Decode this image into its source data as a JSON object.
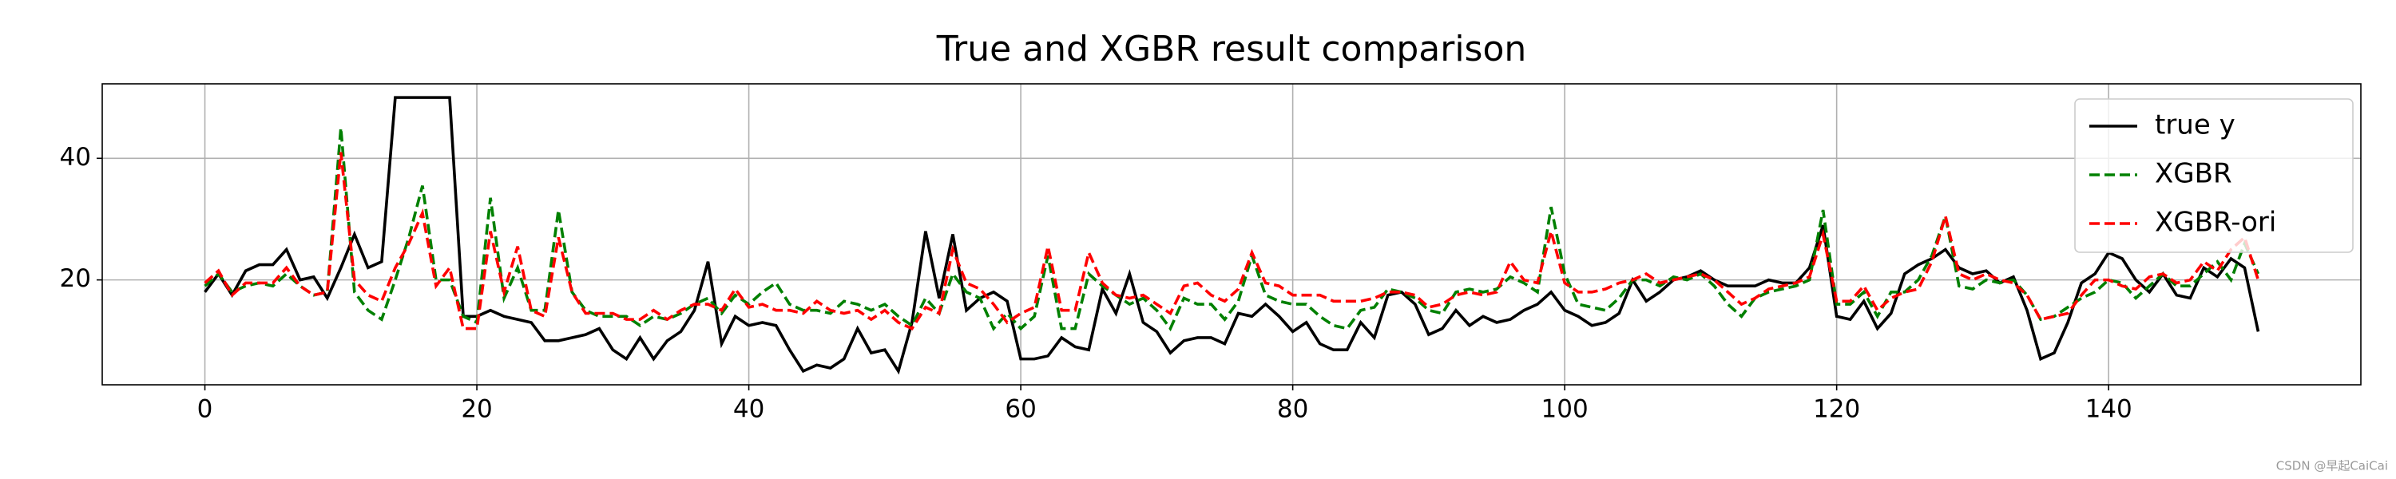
{
  "chart_data": {
    "type": "line",
    "title": "True and XGBR result comparison",
    "x": [
      0,
      1,
      2,
      3,
      4,
      5,
      6,
      7,
      8,
      9,
      10,
      11,
      12,
      13,
      14,
      15,
      16,
      17,
      18,
      19,
      20,
      21,
      22,
      23,
      24,
      25,
      26,
      27,
      28,
      29,
      30,
      31,
      32,
      33,
      34,
      35,
      36,
      37,
      38,
      39,
      40,
      41,
      42,
      43,
      44,
      45,
      46,
      47,
      48,
      49,
      50,
      51,
      52,
      53,
      54,
      55,
      56,
      57,
      58,
      59,
      60,
      61,
      62,
      63,
      64,
      65,
      66,
      67,
      68,
      69,
      70,
      71,
      72,
      73,
      74,
      75,
      76,
      77,
      78,
      79,
      80,
      81,
      82,
      83,
      84,
      85,
      86,
      87,
      88,
      89,
      90,
      91,
      92,
      93,
      94,
      95,
      96,
      97,
      98,
      99,
      100,
      101,
      102,
      103,
      104,
      105,
      106,
      107,
      108,
      109,
      110,
      111,
      112,
      113,
      114,
      115,
      116,
      117,
      118,
      119,
      120,
      121,
      122,
      123,
      124,
      125,
      126,
      127,
      128,
      129,
      130,
      131,
      132,
      133,
      134,
      135,
      136,
      137,
      138,
      139,
      140,
      141,
      142,
      143,
      144,
      145,
      146,
      147,
      148,
      149,
      150,
      151
    ],
    "series": [
      {
        "name": "true y",
        "color": "#000000",
        "dash": "solid",
        "values": [
          18,
          21,
          17.5,
          21.5,
          22.5,
          22.5,
          25,
          20,
          20.5,
          17,
          22,
          27.5,
          22,
          23,
          50,
          50,
          50,
          50,
          50,
          14,
          14,
          15,
          14,
          13.5,
          13,
          10,
          10,
          10.5,
          11,
          12,
          8.5,
          7,
          10.5,
          7,
          10,
          11.5,
          15,
          23,
          9.5,
          14,
          12.5,
          13,
          12.5,
          8.5,
          5,
          6,
          5.5,
          7,
          12,
          8,
          8.5,
          5,
          13,
          28,
          17,
          27.5,
          15,
          17,
          18,
          16.5,
          7,
          7,
          7.5,
          10.5,
          9,
          8.5,
          18.5,
          14.5,
          21,
          13,
          11.5,
          8,
          10,
          10.5,
          10.5,
          9.5,
          14.5,
          14,
          16,
          14,
          11.5,
          13,
          9.5,
          8.5,
          8.5,
          13,
          10.5,
          17.5,
          18,
          16,
          11,
          12,
          15,
          12.5,
          14,
          13,
          13.5,
          15,
          16,
          18,
          15,
          14,
          12.5,
          13,
          14.5,
          20,
          16.5,
          18,
          20,
          20.5,
          21.5,
          20,
          19,
          19,
          19,
          20,
          19.5,
          19.5,
          22,
          29,
          14,
          13.5,
          16.5,
          12,
          14.5,
          21,
          22.5,
          23.5,
          25,
          22,
          21,
          21.5,
          19.5,
          20.5,
          15,
          7,
          8,
          13,
          19.5,
          21,
          24.5,
          23.5,
          20,
          18,
          21,
          17.5,
          17,
          22,
          20.5,
          23.5,
          22,
          11.5
        ]
      },
      {
        "name": "XGBR",
        "color": "#008000",
        "dash": "dashed",
        "values": [
          19,
          21,
          18,
          19,
          19.5,
          19,
          21,
          19,
          17.5,
          18,
          45,
          18,
          15,
          13.5,
          20,
          27,
          35.5,
          20,
          20,
          14,
          13,
          33.5,
          17,
          22,
          15,
          15,
          31.5,
          18,
          15,
          14,
          14,
          14,
          12.5,
          14,
          13.5,
          14.5,
          16,
          17,
          14.5,
          17.5,
          16,
          18,
          19.5,
          16,
          15,
          15,
          14.5,
          16.5,
          16,
          15,
          16,
          14,
          12.5,
          17,
          14.5,
          21,
          18,
          17,
          12,
          14.5,
          12,
          14,
          24,
          12,
          12,
          21,
          19,
          17.5,
          16,
          17,
          15,
          12,
          17,
          16,
          16,
          13.5,
          16.5,
          24,
          17.5,
          16.5,
          16,
          16,
          14,
          12.5,
          12,
          15,
          15.5,
          18.5,
          18,
          17,
          15,
          14.5,
          18,
          18.5,
          18,
          18.5,
          20.5,
          19.5,
          18,
          32,
          21,
          16,
          15.5,
          15,
          17,
          20,
          20,
          19,
          20.5,
          20,
          21,
          19,
          16,
          14,
          17,
          18,
          18.5,
          19,
          20,
          31.5,
          16,
          16,
          18,
          14,
          18,
          18,
          20,
          24,
          30.5,
          19,
          18.5,
          20,
          19.5,
          20,
          17.5,
          13.5,
          14,
          15.5,
          17,
          18,
          20,
          19.5,
          17,
          19,
          21,
          19,
          19,
          21,
          23,
          20,
          26,
          21
        ]
      },
      {
        "name": "XGBR-ori",
        "color": "#ff0000",
        "dash": "dashed",
        "values": [
          19.5,
          21.5,
          17.5,
          19.5,
          19.5,
          19.5,
          22,
          19,
          17.5,
          18,
          41,
          20,
          17.5,
          16.5,
          22,
          26,
          31,
          19,
          22,
          12,
          12,
          28,
          18,
          25.5,
          15,
          14,
          27,
          18,
          14.5,
          14.5,
          14.5,
          13.5,
          13.5,
          15,
          13.5,
          15,
          16,
          16,
          15,
          18.5,
          15.5,
          16,
          15,
          15,
          14.5,
          16.5,
          15,
          14.5,
          15,
          13.5,
          15,
          13,
          12,
          15.5,
          14.5,
          25,
          19.5,
          18.5,
          16,
          13,
          14.5,
          15.5,
          25.5,
          15,
          15,
          24.5,
          19.5,
          17.5,
          17,
          17.5,
          16,
          14.5,
          19,
          19.5,
          17.5,
          16.5,
          18.5,
          24.5,
          19.5,
          19,
          17.5,
          17.5,
          17.5,
          16.5,
          16.5,
          16.5,
          17,
          18,
          18,
          17.5,
          15.5,
          16,
          17.5,
          18,
          17.5,
          18,
          23,
          20,
          19.5,
          28,
          19.5,
          18,
          18,
          18.5,
          19.5,
          20,
          21,
          19.5,
          20,
          20.5,
          21,
          20,
          18,
          16,
          17,
          18.5,
          19,
          19.5,
          20.5,
          27.5,
          16.5,
          16.5,
          19,
          15,
          17,
          18,
          18.5,
          23,
          30.5,
          21,
          20,
          21,
          20,
          19.5,
          17.5,
          13.5,
          14,
          14.5,
          17.5,
          20,
          20,
          19,
          18.5,
          20.5,
          21,
          19.5,
          20,
          23,
          21.5,
          25,
          27,
          20
        ]
      }
    ],
    "xlim": [
      -7.55,
      158.55
    ],
    "xticks": [
      0,
      20,
      40,
      60,
      80,
      100,
      120,
      140
    ],
    "ylim": [
      2.75,
      52.25
    ],
    "yticks": [
      20,
      40
    ],
    "grid": true,
    "legend": "upper right",
    "watermark": "CSDN @早起CaiCai"
  }
}
